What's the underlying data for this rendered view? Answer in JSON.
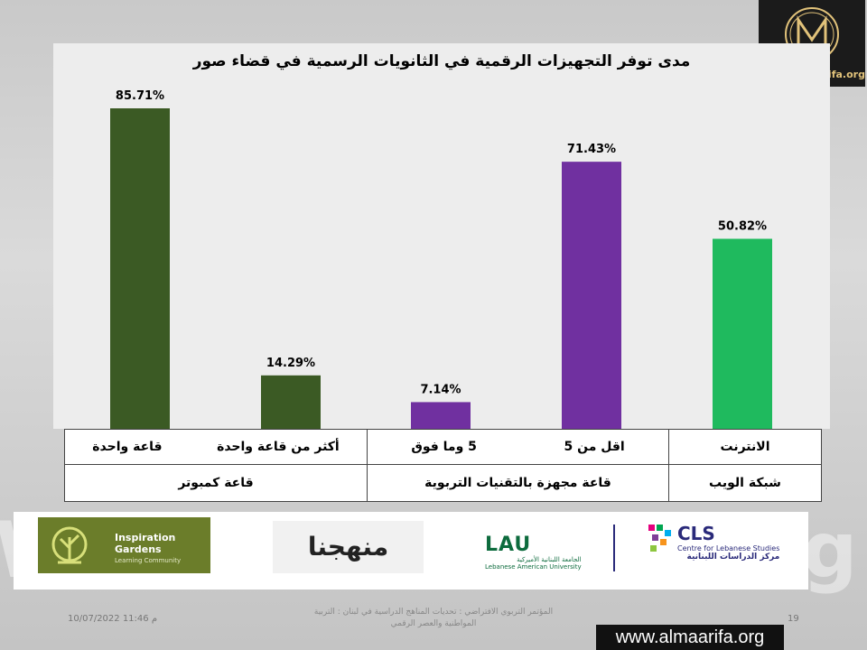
{
  "colors": {
    "computer_bar": "#3b5a24",
    "edu_bar": "#7030a0",
    "web_bar": "#1fba5e",
    "panel": "#ededed"
  },
  "chart_data": {
    "type": "bar",
    "title": "مدى توفر التجهيزات  الرقمية في الثانويات الرسمية في قضاء صور",
    "ylim": [
      0,
      100
    ],
    "grid": false,
    "bars": [
      {
        "label": "قاعة واحدة",
        "group": "قاعة كمبوتر",
        "value": 85.71,
        "value_label": "85.71%",
        "color": "#3b5a24"
      },
      {
        "label": "أكثر من قاعة واحدة",
        "group": "قاعة كمبوتر",
        "value": 14.29,
        "value_label": "14.29%",
        "color": "#3b5a24"
      },
      {
        "label": "5 وما فوق",
        "group": "قاعة مجهزة بالتقنيات التربوية",
        "value": 7.14,
        "value_label": "7.14%",
        "color": "#7030a0"
      },
      {
        "label": "اقل من 5",
        "group": "قاعة مجهزة بالتقنيات التربوية",
        "value": 71.43,
        "value_label": "71.43%",
        "color": "#7030a0"
      },
      {
        "label": "الانترنت",
        "group": "شبكة الويب",
        "value": 50.82,
        "value_label": "50.82%",
        "color": "#1fba5e"
      }
    ]
  },
  "table": {
    "row1": {
      "computer_one": "قاعة واحدة",
      "computer_more": "أكثر من قاعة واحدة",
      "edu_5plus": "5 وما فوق",
      "edu_less5": "اقل من 5",
      "web_internet": "الانترنت"
    },
    "row2": {
      "computer_group": "قاعة كمبوتر",
      "edu_group": "قاعة مجهزة بالتقنيات التربوية",
      "web_group": "شبكة الويب"
    }
  },
  "logo": {
    "url": "www.almaarifa.org"
  },
  "partners": {
    "inspiration_title": "Inspiration Gardens",
    "inspiration_sub": "Learning Community",
    "manahij": "منهجنا",
    "lau_name": "LAU",
    "lau_ar": "الجامعة اللبنانية الأميركية",
    "lau_sub": "Lebanese American University",
    "cls_name": "CLS",
    "cls_sub": "Centre for Lebanese Studies",
    "cls_ar": "مركز الدراسات اللبنانية"
  },
  "footer": {
    "date": "10/07/2022 11:46 م",
    "conference": "المؤتمر التربوي الافتراضي : تحديات المناهج الدراسية في لبنان : التربية المواطنية والعصر الرقمي",
    "page": "19",
    "url": "www.almaarifa.org"
  }
}
